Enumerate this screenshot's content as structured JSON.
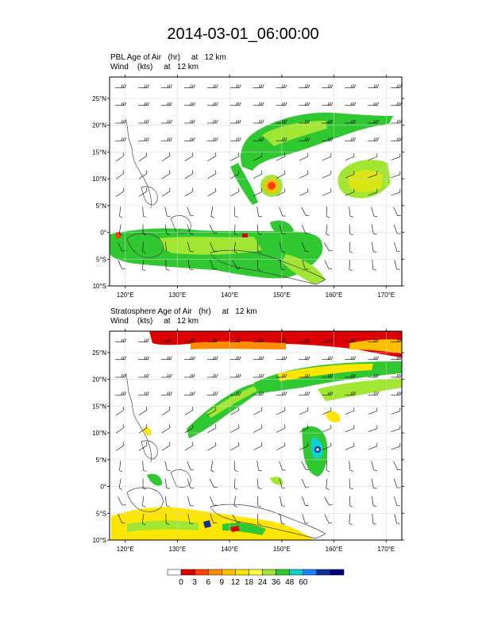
{
  "title": "2014-03-01_06:00:00",
  "panels": [
    {
      "id": "pbl",
      "line1": "PBL Age of Air   (hr)     at   12 km",
      "line2": "Wind    (kts)     at   12 km"
    },
    {
      "id": "strat",
      "line1": "Stratosphere Age of Air   (hr)     at   12 km",
      "line2": "Wind    (kts)     at   12 km"
    }
  ],
  "lat_ticks": [
    "25°N",
    "20°N",
    "15°N",
    "10°N",
    "5°N",
    "0°",
    "5°S",
    "10°S"
  ],
  "lat_values": [
    25,
    20,
    15,
    10,
    5,
    0,
    -5,
    -10
  ],
  "lon_ticks": [
    "120°E",
    "130°E",
    "140°E",
    "150°E",
    "160°E",
    "170°E"
  ],
  "lon_values": [
    120,
    130,
    140,
    150,
    160,
    170
  ],
  "map_extent": {
    "lon": [
      117,
      173
    ],
    "lat": [
      -10,
      29
    ]
  },
  "colorbar": {
    "labels": [
      "0",
      "3",
      "6",
      "9",
      "12",
      "18",
      "24",
      "36",
      "48",
      "60"
    ],
    "colors": [
      "#ffffff",
      "#dd0000",
      "#ff4000",
      "#ff8c00",
      "#ffbf00",
      "#ffe600",
      "#ffff40",
      "#a0e632",
      "#30c830",
      "#10d0d0",
      "#1e82ff",
      "#1030a0",
      "#000080"
    ]
  }
}
